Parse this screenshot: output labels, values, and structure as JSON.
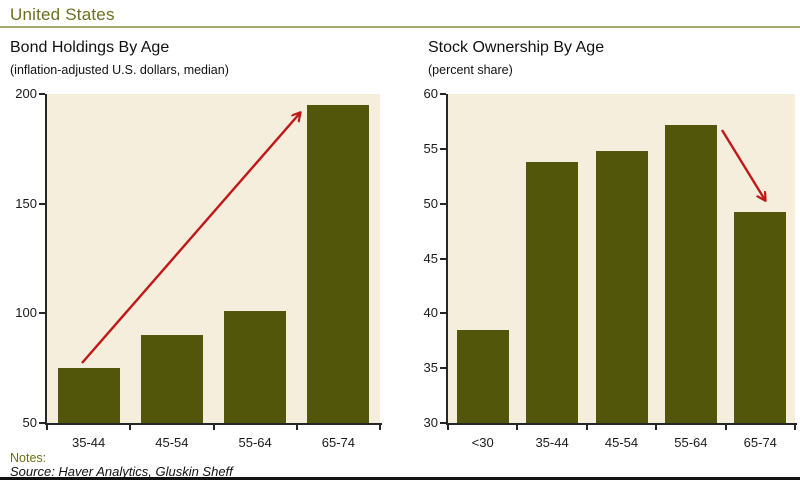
{
  "page": {
    "title": "United States",
    "notes_label": "Notes:",
    "source": "Source: Haver Analytics, Gluskin Sheff"
  },
  "colors": {
    "bar": "#51560b",
    "plot_background": "#f5eedd",
    "heading": "#6c701e",
    "rule": "#a6a76c",
    "arrow": "#c01818",
    "axis": "#262626",
    "text": "#1a1a1a"
  },
  "chart_data": [
    {
      "type": "bar",
      "title": "Bond Holdings By Age",
      "subtitle": "(inflation-adjusted U.S. dollars, median)",
      "categories": [
        "35-44",
        "45-54",
        "55-64",
        "65-74"
      ],
      "values": [
        75,
        90,
        101,
        195
      ],
      "xlabel": "",
      "ylabel": "",
      "ylim": [
        50,
        200
      ],
      "yticks": [
        50,
        100,
        150,
        200
      ],
      "grid": false,
      "legend": "none",
      "annotation": {
        "type": "trend-arrow",
        "direction": "up",
        "color": "#c01818"
      }
    },
    {
      "type": "bar",
      "title": "Stock Ownership By Age",
      "subtitle": "(percent share)",
      "categories": [
        "<30",
        "35-44",
        "45-54",
        "55-64",
        "65-74"
      ],
      "values": [
        38.5,
        53.8,
        54.8,
        57.2,
        49.2
      ],
      "xlabel": "",
      "ylabel": "",
      "ylim": [
        30,
        60
      ],
      "yticks": [
        30,
        35,
        40,
        45,
        50,
        55,
        60
      ],
      "grid": false,
      "legend": "none",
      "annotation": {
        "type": "trend-arrow",
        "direction": "down",
        "color": "#c01818"
      }
    }
  ]
}
